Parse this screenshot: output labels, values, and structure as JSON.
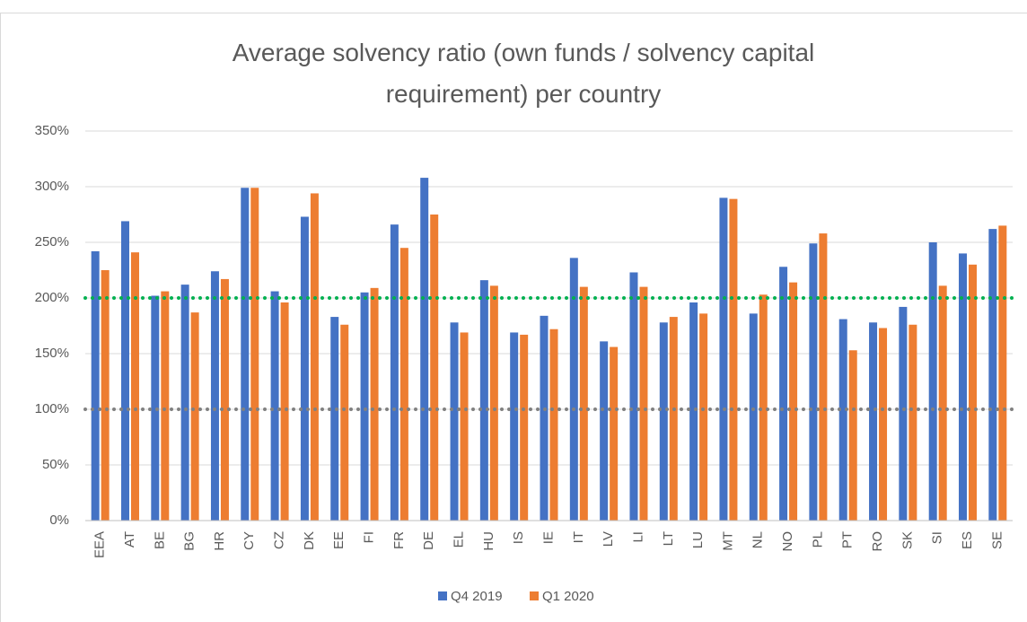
{
  "chart_data": {
    "type": "bar",
    "title": "Average  solvency ratio (own funds / solvency capital requirement) per country",
    "categories": [
      "EEA",
      "AT",
      "BE",
      "BG",
      "HR",
      "CY",
      "CZ",
      "DK",
      "EE",
      "FI",
      "FR",
      "DE",
      "EL",
      "HU",
      "IS",
      "IE",
      "IT",
      "LV",
      "LI",
      "LT",
      "LU",
      "MT",
      "NL",
      "NO",
      "PL",
      "PT",
      "RO",
      "SK",
      "SI",
      "ES",
      "SE"
    ],
    "series": [
      {
        "name": "Q4 2019",
        "color": "#4472c4",
        "values": [
          242,
          269,
          202,
          212,
          224,
          299,
          206,
          273,
          183,
          205,
          266,
          308,
          178,
          216,
          169,
          184,
          236,
          161,
          223,
          178,
          196,
          290,
          186,
          228,
          249,
          181,
          178,
          192,
          250,
          240,
          262
        ]
      },
      {
        "name": "Q1 2020",
        "color": "#ed7d31",
        "values": [
          225,
          241,
          206,
          187,
          217,
          299,
          196,
          294,
          176,
          209,
          245,
          275,
          169,
          211,
          167,
          172,
          210,
          156,
          210,
          183,
          186,
          289,
          203,
          214,
          258,
          153,
          173,
          176,
          211,
          230,
          265
        ]
      }
    ],
    "ylim": [
      0,
      350
    ],
    "yticks": [
      {
        "value": 0,
        "label": "0%"
      },
      {
        "value": 50,
        "label": "50%"
      },
      {
        "value": 100,
        "label": "100%"
      },
      {
        "value": 150,
        "label": "150%"
      },
      {
        "value": 200,
        "label": "200%"
      },
      {
        "value": 250,
        "label": "250%"
      },
      {
        "value": 300,
        "label": "300%"
      },
      {
        "value": 350,
        "label": "350%"
      }
    ],
    "grid": true,
    "reference_lines": [
      {
        "value": 200,
        "color": "#00b050"
      },
      {
        "value": 100,
        "color": "#808080"
      }
    ],
    "legend": "bottom"
  }
}
